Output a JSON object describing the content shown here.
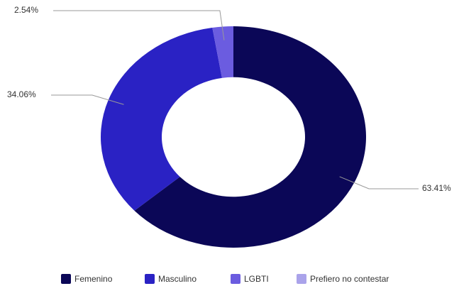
{
  "chart_data": {
    "type": "donut",
    "categories": [
      "Femenino",
      "Masculino",
      "LGBTI",
      "Prefiero no contestar"
    ],
    "values": [
      63.41,
      34.06,
      2.54,
      0
    ],
    "value_labels": [
      "63.41%",
      "34.06%",
      "2.54%",
      null
    ],
    "colors": [
      "#0b0757",
      "#2a22c4",
      "#6b5ce0",
      "#aaa3ea"
    ],
    "legend": "bottom"
  }
}
